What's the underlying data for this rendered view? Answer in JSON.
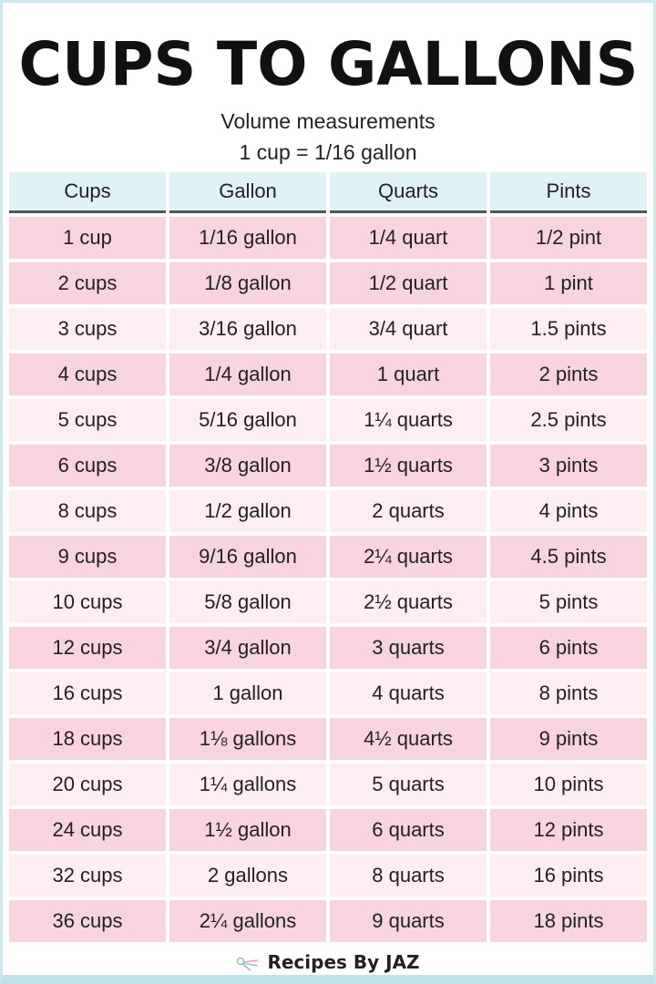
{
  "title": "CUPS TO GALLONS",
  "subtitle": "Volume measurements",
  "equivalence": "1 cup = 1/16 gallon",
  "colors": {
    "header": "#dff2f5",
    "row_dark": "#f8d4df",
    "row_light": "#fdeef2"
  },
  "table": {
    "headers": [
      "Cups",
      "Gallon",
      "Quarts",
      "Pints"
    ],
    "rows": [
      [
        "1 cup",
        "1/16 gallon",
        "1/4 quart",
        "1/2 pint"
      ],
      [
        "2 cups",
        "1/8 gallon",
        "1/2 quart",
        "1 pint"
      ],
      [
        "3 cups",
        "3/16 gallon",
        "3/4 quart",
        "1.5 pints"
      ],
      [
        "4 cups",
        "1/4 gallon",
        "1 quart",
        "2 pints"
      ],
      [
        "5 cups",
        "5/16 gallon",
        "1¼ quarts",
        "2.5 pints"
      ],
      [
        "6 cups",
        "3/8 gallon",
        "1½ quarts",
        "3 pints"
      ],
      [
        "8 cups",
        "1/2 gallon",
        "2 quarts",
        "4 pints"
      ],
      [
        "9 cups",
        "9/16 gallon",
        "2¼ quarts",
        "4.5 pints"
      ],
      [
        "10 cups",
        "5/8 gallon",
        "2½ quarts",
        "5 pints"
      ],
      [
        "12 cups",
        "3/4 gallon",
        "3 quarts",
        "6 pints"
      ],
      [
        "16 cups",
        "1 gallon",
        "4 quarts",
        "8 pints"
      ],
      [
        "18 cups",
        "1⅛ gallons",
        "4½ quarts",
        "9 pints"
      ],
      [
        "20 cups",
        "1¼ gallons",
        "5 quarts",
        "10 pints"
      ],
      [
        "24 cups",
        "1½ gallon",
        "6 quarts",
        "12 pints"
      ],
      [
        "32 cups",
        "2 gallons",
        "8 quarts",
        "16 pints"
      ],
      [
        "36 cups",
        "2¼ gallons",
        "9 quarts",
        "18 pints"
      ]
    ]
  },
  "footer": {
    "brand": "Recipes By JAZ",
    "logo_icon": "whisk-icon"
  }
}
